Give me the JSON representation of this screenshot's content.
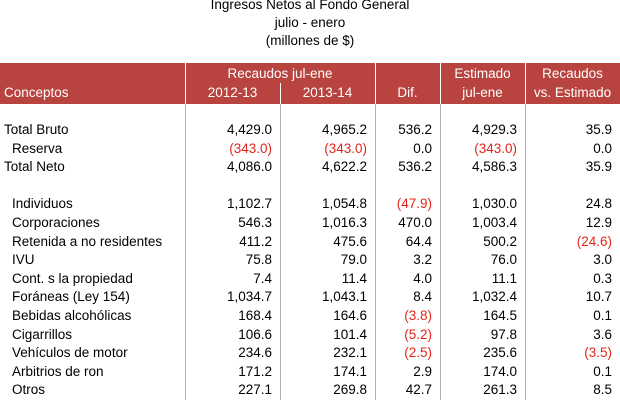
{
  "title": [
    "Ingresos Netos al Fondo General",
    "julio - enero",
    "(millones de $)"
  ],
  "header": {
    "group": "Recaudos jul-ene",
    "estimado": "Estimado",
    "recaudos": "Recaudos",
    "columns": [
      "Conceptos",
      "2012-13",
      "2013-14",
      "Dif.",
      "jul-ene",
      "vs. Estimado"
    ]
  },
  "sections": [
    [
      [
        "Total Bruto",
        "4,429.0",
        "4,965.2",
        "536.2",
        "4,929.3",
        "35.9"
      ],
      [
        "Reserva",
        "(343.0)",
        "(343.0)",
        "0.0",
        "(343.0)",
        "0.0"
      ],
      [
        "Total Neto",
        "4,086.0",
        "4,622.2",
        "536.2",
        "4,586.3",
        "35.9"
      ]
    ],
    [
      [
        "Individuos",
        "1,102.7",
        "1,054.8",
        "(47.9)",
        "1,030.0",
        "24.8"
      ],
      [
        "Corporaciones",
        "546.3",
        "1,016.3",
        "470.0",
        "1,003.4",
        "12.9"
      ],
      [
        "Retenida a no residentes",
        "411.2",
        "475.6",
        "64.4",
        "500.2",
        "(24.6)"
      ],
      [
        "IVU",
        "75.8",
        "79.0",
        "3.2",
        "76.0",
        "3.0"
      ],
      [
        "Cont. s la propiedad",
        "7.4",
        "11.4",
        "4.0",
        "11.1",
        "0.3"
      ],
      [
        "Foráneas (Ley 154)",
        "1,034.7",
        "1,043.1",
        "8.4",
        "1,032.4",
        "10.7"
      ],
      [
        "Bebidas alcohólicas",
        "168.4",
        "164.6",
        "(3.8)",
        "164.5",
        "0.1"
      ],
      [
        "Cigarrillos",
        "106.6",
        "101.4",
        "(5.2)",
        "97.8",
        "3.6"
      ],
      [
        "Vehículos de motor",
        "234.6",
        "232.1",
        "(2.5)",
        "235.6",
        "(3.5)"
      ],
      [
        "Arbitrios de ron",
        "171.2",
        "174.1",
        "2.9",
        "174.0",
        "0.1"
      ],
      [
        "Otros",
        "227.1",
        "269.8",
        "42.7",
        "261.3",
        "8.5"
      ]
    ]
  ]
}
